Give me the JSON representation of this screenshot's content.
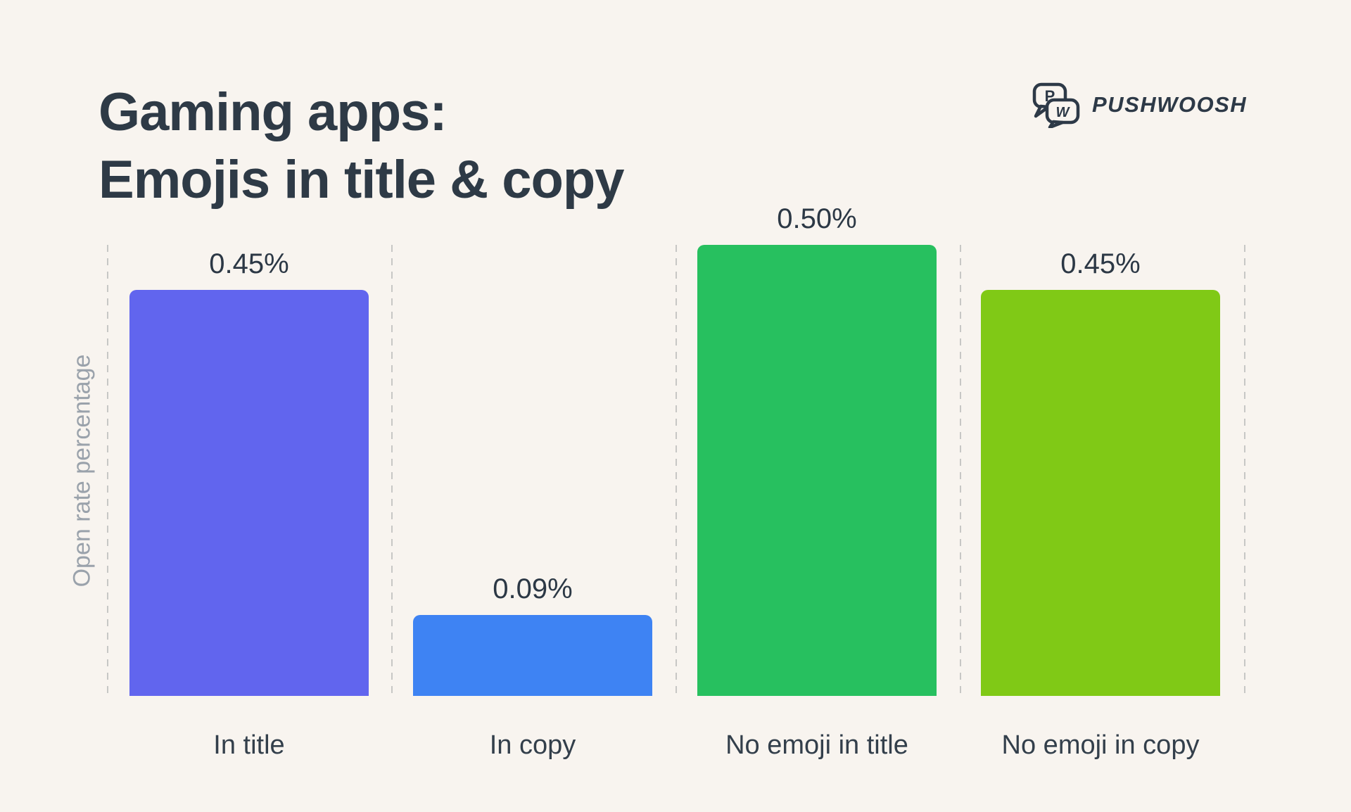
{
  "header": {
    "title_line1": "Gaming apps:",
    "title_line2": "Emojis in title & copy"
  },
  "brand": {
    "name": "PUSHWOOSH",
    "icon_letters": [
      "P",
      "W"
    ]
  },
  "chart_data": {
    "type": "bar",
    "title": "Gaming apps: Emojis in title & copy",
    "xlabel": "",
    "ylabel": "Open rate percentage",
    "categories": [
      "In title",
      "In copy",
      "No emoji in title",
      "No emoji in copy"
    ],
    "values": [
      0.45,
      0.09,
      0.5,
      0.45
    ],
    "value_labels": [
      "0.45%",
      "0.09%",
      "0.50%",
      "0.45%"
    ],
    "bar_colors": [
      "#6165ee",
      "#3e83f3",
      "#27c05f",
      "#80c916"
    ],
    "ylim": [
      0,
      0.52
    ],
    "grid": "vertical-dashed-separators-between-bars",
    "legend": "none"
  },
  "colors": {
    "background": "#f8f4ef",
    "title_text": "#2e3a46",
    "brand_text": "#2d3947",
    "axis_label_text": "#9aa2ab",
    "category_text": "#333f4b",
    "value_text": "#2c3845",
    "separator": "#c7c7c5"
  }
}
